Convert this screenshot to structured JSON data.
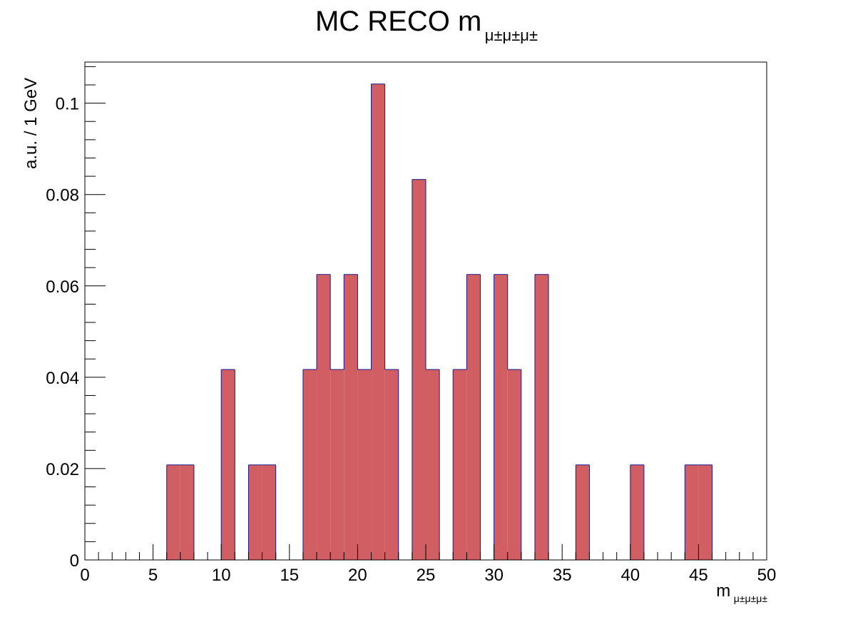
{
  "chart_data": {
    "type": "bar",
    "title": "MC RECO m",
    "title_subscript": "μ±μ±μ±",
    "xlabel": "m",
    "xlabel_subscript": "μ±μ±μ±",
    "ylabel": "a.u. / 1 GeV",
    "xlim": [
      0,
      50
    ],
    "ylim": [
      0,
      0.109
    ],
    "bin_width": 1,
    "x_ticks": [
      "0",
      "5",
      "10",
      "15",
      "20",
      "25",
      "30",
      "35",
      "40",
      "45",
      "50"
    ],
    "y_ticks": [
      "0",
      "0.02",
      "0.04",
      "0.06",
      "0.08",
      "0.1"
    ],
    "grid": false,
    "bins": [
      {
        "x": 6,
        "value": 0.0208
      },
      {
        "x": 7,
        "value": 0.0208
      },
      {
        "x": 10,
        "value": 0.0417
      },
      {
        "x": 12,
        "value": 0.0208
      },
      {
        "x": 13,
        "value": 0.0208
      },
      {
        "x": 16,
        "value": 0.0417
      },
      {
        "x": 17,
        "value": 0.0625
      },
      {
        "x": 18,
        "value": 0.0417
      },
      {
        "x": 19,
        "value": 0.0625
      },
      {
        "x": 20,
        "value": 0.0417
      },
      {
        "x": 21,
        "value": 0.1042
      },
      {
        "x": 22,
        "value": 0.0417
      },
      {
        "x": 24,
        "value": 0.0833
      },
      {
        "x": 25,
        "value": 0.0417
      },
      {
        "x": 27,
        "value": 0.0417
      },
      {
        "x": 28,
        "value": 0.0625
      },
      {
        "x": 30,
        "value": 0.0625
      },
      {
        "x": 31,
        "value": 0.0417
      },
      {
        "x": 33,
        "value": 0.0625
      },
      {
        "x": 36,
        "value": 0.0208
      },
      {
        "x": 40,
        "value": 0.0208
      },
      {
        "x": 44,
        "value": 0.0208
      },
      {
        "x": 45,
        "value": 0.0208
      }
    ],
    "colors": {
      "fill": "#d05e62",
      "outline": "#1a1a8c",
      "frame": "#000000"
    }
  }
}
